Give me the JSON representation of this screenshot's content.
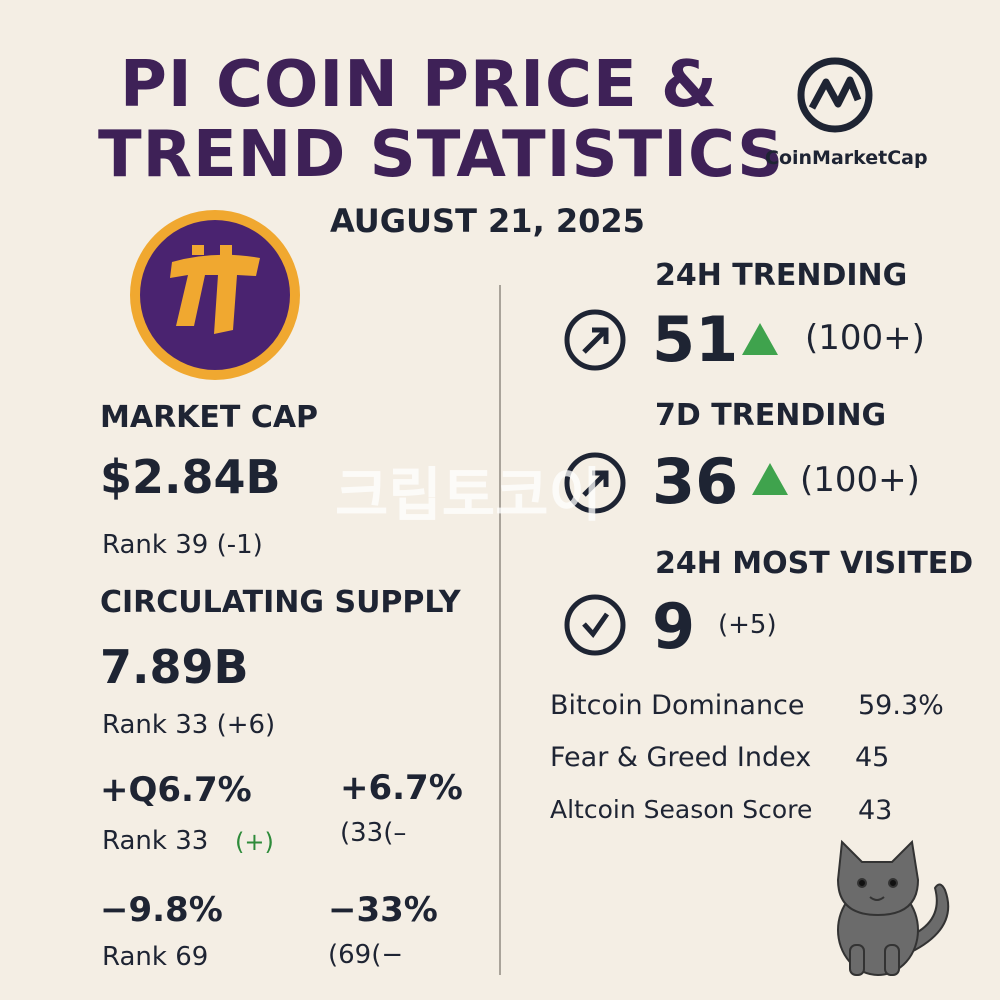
{
  "header": {
    "title_line1": "PI COIN PRICE &",
    "title_line2": "TREND STATISTICS",
    "brand": "CoinMarketCap",
    "date": "AUGUST 21, 2025"
  },
  "watermark": "크립토코이",
  "left": {
    "market_cap": {
      "label": "MARKET CAP",
      "value": "$2.84B",
      "rank": "Rank 39 (-1)"
    },
    "circulating_supply": {
      "label": "CIRCULATING SUPPLY",
      "value": "7.89B",
      "rank": "Rank 33 (+6)"
    },
    "changes": [
      {
        "value": "+Q6.7%",
        "rank": "Rank 33",
        "rank_change": "(+)"
      },
      {
        "value": "+6.7%",
        "rank": "(33(–"
      },
      {
        "value": "−9.8%",
        "rank": "Rank 69"
      },
      {
        "value": "−33%",
        "rank": "(69(−"
      }
    ]
  },
  "right": {
    "trending_24h": {
      "label": "24H TRENDING",
      "value": "51",
      "change": "(100+)"
    },
    "trending_7d": {
      "label": "7D TRENDING",
      "value": "36",
      "change": "(100+)"
    },
    "most_visited_24h": {
      "label": "24H MOST VISITED",
      "value": "9",
      "change": "(+5)"
    },
    "stats": [
      {
        "label": "Bitcoin Dominance",
        "value": "59.3%"
      },
      {
        "label": "Fear & Greed Index",
        "value": "45"
      },
      {
        "label": "Altcoin Season Score",
        "value": "43"
      }
    ]
  }
}
